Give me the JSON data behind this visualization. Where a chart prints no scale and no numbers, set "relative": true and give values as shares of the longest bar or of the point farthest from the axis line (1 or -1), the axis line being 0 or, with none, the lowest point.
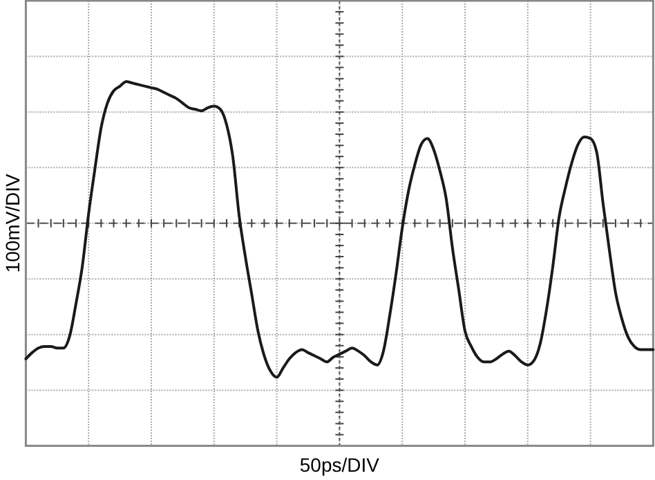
{
  "chart_data": {
    "type": "line",
    "xlabel": "50ps/DIV",
    "ylabel": "100mV/DIV",
    "relative": true,
    "grid": true,
    "ref_lines": [
      {
        "axis": "y",
        "value": 0,
        "line_style": "dashed",
        "color": "#555555"
      }
    ],
    "marker": "none",
    "line_style": "solid",
    "categories": [
      null,
      null,
      null,
      null,
      null,
      null,
      null,
      null,
      null,
      null,
      null,
      null,
      null,
      null,
      null,
      null,
      null,
      null,
      null,
      null,
      null,
      null,
      null,
      null,
      null,
      null,
      null,
      null,
      null,
      null,
      null,
      null,
      null,
      null,
      null,
      null,
      null,
      null,
      null,
      null,
      null,
      null,
      null,
      null,
      null,
      null,
      null,
      null,
      null,
      null,
      null,
      null,
      null,
      null,
      null,
      null,
      null,
      null,
      null,
      null,
      null,
      null,
      null,
      null,
      null,
      null,
      null,
      null,
      null,
      null,
      null,
      null,
      null,
      null,
      null,
      null,
      null,
      null,
      null,
      null,
      null,
      null,
      null,
      null,
      null,
      null,
      null,
      null,
      null,
      null,
      null,
      null,
      null,
      null,
      null,
      null,
      null,
      null,
      null,
      null,
      null
    ],
    "series": [
      {
        "color": "#1a1a1a",
        "values": [
          -0.88,
          -0.84,
          -0.81,
          -0.8,
          -0.8,
          -0.81,
          -0.81,
          -0.73,
          -0.52,
          -0.28,
          0.06,
          0.35,
          0.62,
          0.78,
          0.86,
          0.89,
          0.92,
          0.91,
          0.9,
          0.89,
          0.88,
          0.87,
          0.85,
          0.83,
          0.81,
          0.78,
          0.75,
          0.74,
          0.73,
          0.75,
          0.76,
          0.74,
          0.64,
          0.43,
          0.05,
          -0.22,
          -0.46,
          -0.7,
          -0.86,
          -0.96,
          -1,
          -0.94,
          -0.88,
          -0.84,
          -0.82,
          -0.84,
          -0.86,
          -0.88,
          -0.9,
          -0.87,
          -0.85,
          -0.83,
          -0.81,
          -0.83,
          -0.86,
          -0.9,
          -0.92,
          -0.83,
          -0.6,
          -0.33,
          -0.03,
          0.21,
          0.38,
          0.51,
          0.55,
          0.48,
          0.34,
          0.16,
          -0.16,
          -0.43,
          -0.7,
          -0.8,
          -0.87,
          -0.9,
          -0.9,
          -0.88,
          -0.85,
          -0.83,
          -0.86,
          -0.9,
          -0.92,
          -0.89,
          -0.78,
          -0.56,
          -0.28,
          0.04,
          0.23,
          0.39,
          0.51,
          0.56,
          0.55,
          0.46,
          0.13,
          -0.17,
          -0.45,
          -0.62,
          -0.74,
          -0.8,
          -0.82,
          -0.82,
          -0.82
        ]
      }
    ]
  }
}
